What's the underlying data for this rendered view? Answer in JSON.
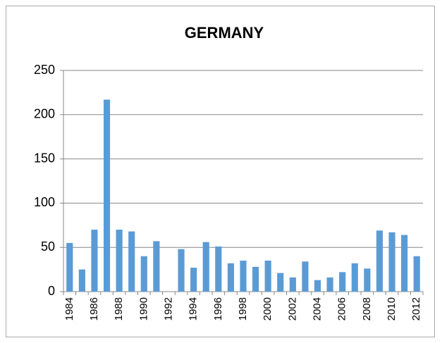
{
  "chart_data": {
    "type": "bar",
    "title": "GERMANY",
    "categories": [
      "1984",
      null,
      "1986",
      null,
      "1988",
      null,
      "1990",
      null,
      "1992",
      null,
      "1994",
      null,
      "1996",
      null,
      "1998",
      null,
      "2000",
      null,
      "2002",
      null,
      "2004",
      null,
      "2006",
      null,
      "2008",
      null,
      "2010",
      null,
      "2012"
    ],
    "values": [
      55,
      25,
      70,
      217,
      70,
      68,
      40,
      57,
      null,
      48,
      27,
      56,
      51,
      32,
      35,
      28,
      35,
      21,
      16,
      34,
      13,
      16,
      22,
      32,
      26,
      69,
      67,
      64,
      40
    ],
    "color": "#5b9bd5",
    "ylim": [
      0,
      250
    ],
    "yticks": [
      0,
      50,
      100,
      150,
      200,
      250
    ],
    "grid": true
  }
}
